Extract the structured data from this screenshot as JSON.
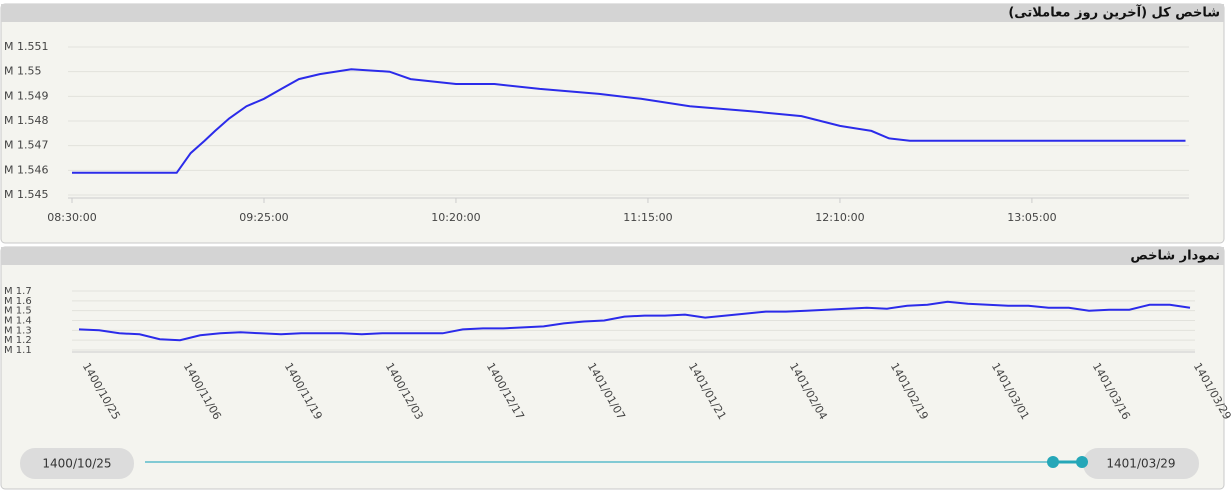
{
  "chart_data": [
    {
      "type": "line",
      "title": "شاخص کل (آخرین روز معاملاتی)",
      "x": [
        "08:30:00",
        "09:00:00",
        "09:04:00",
        "09:08:00",
        "09:11:00",
        "09:15:00",
        "09:20:00",
        "09:25:00",
        "09:30:00",
        "09:35:00",
        "09:41:00",
        "09:50:00",
        "10:01:00",
        "10:07:00",
        "10:20:00",
        "10:31:00",
        "10:44:00",
        "11:01:00",
        "11:13:00",
        "11:27:00",
        "11:44:00",
        "11:59:00",
        "12:10:00",
        "12:19:00",
        "12:24:00",
        "12:30:00",
        "13:49:00"
      ],
      "series": [
        {
          "color": "#2b2bea",
          "values": [
            1.5459,
            1.5459,
            1.5467,
            1.5472,
            1.5476,
            1.5481,
            1.5486,
            1.5489,
            1.5493,
            1.5497,
            1.5499,
            1.5501,
            1.55,
            1.5497,
            1.5495,
            1.5495,
            1.5493,
            1.5491,
            1.5489,
            1.5486,
            1.5484,
            1.5482,
            1.5478,
            1.5476,
            1.5473,
            1.5472,
            1.5472
          ]
        }
      ],
      "xlim": [
        "08:30:00",
        "13:50:00"
      ],
      "xticks": [
        "08:30:00",
        "09:25:00",
        "10:20:00",
        "11:15:00",
        "12:10:00",
        "13:05:00"
      ],
      "ylim": [
        1.545,
        1.551
      ],
      "yticks": [
        {
          "value": 1.545,
          "label": "M 1.545"
        },
        {
          "value": 1.546,
          "label": "M 1.546"
        },
        {
          "value": 1.547,
          "label": "M 1.547"
        },
        {
          "value": 1.548,
          "label": "M 1.548"
        },
        {
          "value": 1.549,
          "label": "M 1.549"
        },
        {
          "value": 1.55,
          "label": "M 1.55"
        },
        {
          "value": 1.551,
          "label": "M 1.551"
        }
      ],
      "grid": true
    },
    {
      "type": "line",
      "title": "نمودار شاخص",
      "categories": [
        "1400/10/25",
        null,
        null,
        null,
        null,
        "1400/11/06",
        null,
        null,
        null,
        null,
        "1400/11/19",
        null,
        null,
        null,
        null,
        "1400/12/03",
        null,
        null,
        null,
        null,
        "1400/12/17",
        null,
        null,
        null,
        null,
        "1401/01/07",
        null,
        null,
        null,
        null,
        "1401/01/21",
        null,
        null,
        null,
        null,
        "1401/02/04",
        null,
        null,
        null,
        null,
        "1401/02/19",
        null,
        null,
        null,
        null,
        "1401/03/01",
        null,
        null,
        null,
        null,
        "1401/03/16",
        null,
        null,
        null,
        null,
        "1401/03/29"
      ],
      "series": [
        {
          "color": "#2b2bea",
          "values": [
            1.31,
            1.3,
            1.27,
            1.26,
            1.21,
            1.2,
            1.25,
            1.27,
            1.28,
            1.27,
            1.26,
            1.27,
            1.27,
            1.27,
            1.26,
            1.27,
            1.27,
            1.27,
            1.27,
            1.31,
            1.32,
            1.32,
            1.33,
            1.34,
            1.37,
            1.39,
            1.4,
            1.44,
            1.45,
            1.45,
            1.46,
            1.43,
            1.45,
            1.47,
            1.49,
            1.49,
            1.5,
            1.51,
            1.52,
            1.53,
            1.52,
            1.55,
            1.56,
            1.59,
            1.57,
            1.56,
            1.55,
            1.55,
            1.53,
            1.53,
            1.5,
            1.51,
            1.51,
            1.56,
            1.56,
            1.53
          ]
        }
      ],
      "ylim": [
        1.1,
        1.7
      ],
      "yticks": [
        {
          "value": 1.1,
          "label": "M 1.1"
        },
        {
          "value": 1.2,
          "label": "M 1.2"
        },
        {
          "value": 1.3,
          "label": "M 1.3"
        },
        {
          "value": 1.4,
          "label": "M 1.4"
        },
        {
          "value": 1.5,
          "label": "M 1.5"
        },
        {
          "value": 1.6,
          "label": "M 1.6"
        },
        {
          "value": 1.7,
          "label": "M 1.7"
        }
      ],
      "grid": true
    }
  ],
  "range_slider": {
    "start": "1400/10/25",
    "end": "1401/03/29"
  }
}
